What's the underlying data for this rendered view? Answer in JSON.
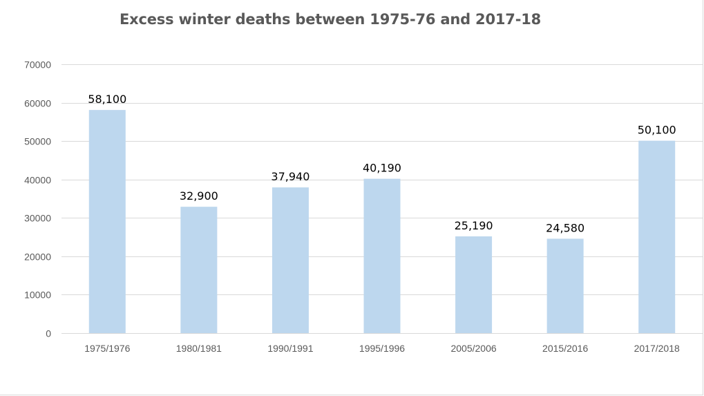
{
  "chart_data": {
    "type": "bar",
    "title": "Excess winter deaths between 1975-76 and 2017-18",
    "xlabel": "",
    "ylabel": "",
    "categories": [
      "1975/1976",
      "1980/1981",
      "1990/1991",
      "1995/1996",
      "2005/2006",
      "2015/2016",
      "2017/2018"
    ],
    "values": [
      58100,
      32900,
      37940,
      40190,
      25190,
      24580,
      50100
    ],
    "data_labels": [
      "58,100",
      "32,900",
      "37,940",
      "40,190",
      "25,190",
      "24,580",
      "50,100"
    ],
    "y_ticks": [
      "0",
      "10000",
      "20000",
      "30000",
      "40000",
      "50000",
      "60000",
      "70000"
    ],
    "ylim": [
      0,
      70000
    ],
    "grid": true,
    "legend": "none",
    "bar_color": "#bdd7ee",
    "grid_color": "#d9d9d9"
  }
}
